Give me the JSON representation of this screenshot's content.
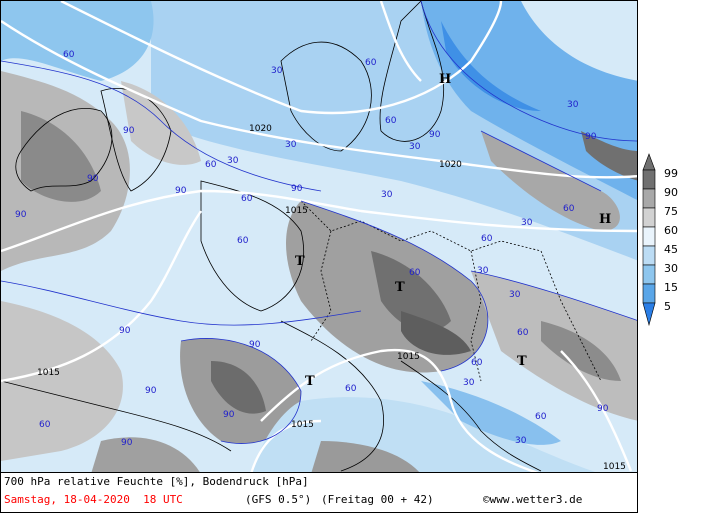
{
  "title": "700 hPa relative Feuchte [%], Bodendruck [hPa]",
  "valid_time": "Samstag, 18-04-2020  18 UTC",
  "model": "(GFS 0.5°)",
  "run": "(Freitag 00 + 42)",
  "credit": "©www.wetter3.de",
  "legend": {
    "levels": [
      "99",
      "90",
      "75",
      "60",
      "45",
      "30",
      "15",
      "5"
    ],
    "colors": [
      "#707070",
      "#a8a8a8",
      "#d2d2d2",
      "#eaf4fc",
      "#bcdcf4",
      "#8ec6ee",
      "#5aa6e8",
      "#2a7ee6"
    ]
  },
  "pressure_systems": [
    {
      "type": "H",
      "label": "H"
    },
    {
      "type": "H",
      "label": "H"
    },
    {
      "type": "T",
      "label": "T"
    },
    {
      "type": "T",
      "label": "T"
    },
    {
      "type": "T",
      "label": "T"
    },
    {
      "type": "T",
      "label": "T"
    }
  ],
  "isobar_labels": [
    "1020",
    "1020",
    "1015",
    "1015",
    "1015",
    "1015",
    "1015"
  ],
  "humidity_labels": [
    "60",
    "60",
    "60",
    "60",
    "30",
    "30",
    "30",
    "30",
    "30",
    "30",
    "90",
    "90",
    "90",
    "90",
    "90",
    "90",
    "60",
    "60",
    "60",
    "30",
    "90",
    "60",
    "30",
    "60",
    "90",
    "90",
    "30",
    "60",
    "60",
    "30",
    "60",
    "90",
    "90",
    "60",
    "90",
    "30",
    "60",
    "90"
  ]
}
